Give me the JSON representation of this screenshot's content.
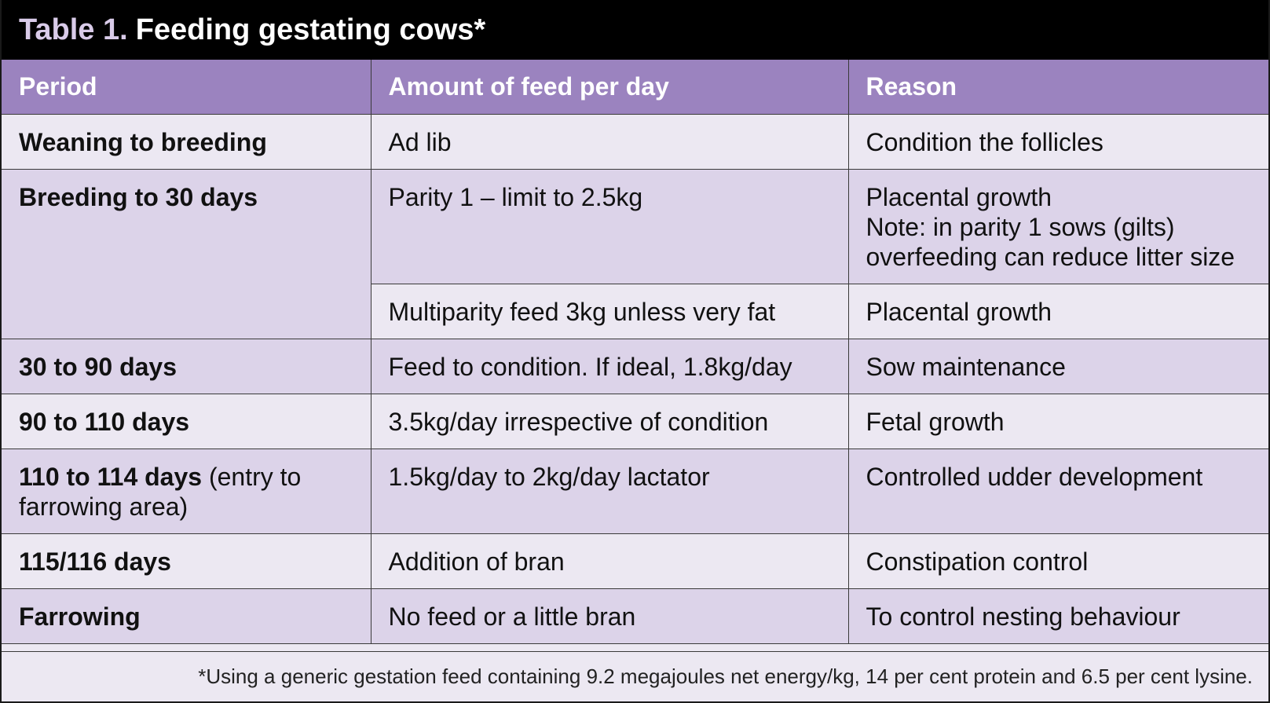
{
  "title": {
    "prefix": "Table 1.",
    "text": "Feeding gestating cows*"
  },
  "headers": [
    "Period",
    "Amount of feed per day",
    "Reason"
  ],
  "rows": [
    {
      "period": "Weaning to breeding",
      "amount": "Ad lib",
      "reason": [
        "Condition the follicles"
      ]
    },
    {
      "period": "Breeding to 30 days",
      "amount": "Parity 1 – limit to 2.5kg",
      "reason": [
        "Placental growth",
        "Note: in parity 1 sows (gilts)",
        "overfeeding can reduce litter size"
      ]
    },
    {
      "amount": "Multiparity feed 3kg unless very fat",
      "reason": [
        "Placental growth"
      ]
    },
    {
      "period": "30 to 90 days",
      "amount": "Feed to condition. If ideal, 1.8kg/day",
      "reason": [
        "Sow maintenance"
      ]
    },
    {
      "period": "90 to 110 days",
      "amount": "3.5kg/day irrespective of condition",
      "reason": [
        "Fetal growth"
      ]
    },
    {
      "period": "110 to 114 days",
      "period_note": "(entry to farrowing area)",
      "amount": "1.5kg/day to 2kg/day lactator",
      "reason": [
        "Controlled udder development"
      ]
    },
    {
      "period": "115/116 days",
      "amount": "Addition of bran",
      "reason": [
        "Constipation control"
      ]
    },
    {
      "period": "Farrowing",
      "amount": "No feed or a little bran",
      "reason": [
        "To control nesting behaviour"
      ]
    }
  ],
  "footnote": "*Using a generic gestation feed containing 9.2 megajoules net energy/kg, 14 per cent protein and 6.5 per cent lysine.",
  "colors": {
    "title_bg": "#000000",
    "title_prefix": "#d9cbe9",
    "header_bg": "#9b83bf",
    "row_light": "#ece8f2",
    "row_dark": "#dcd3e9"
  }
}
